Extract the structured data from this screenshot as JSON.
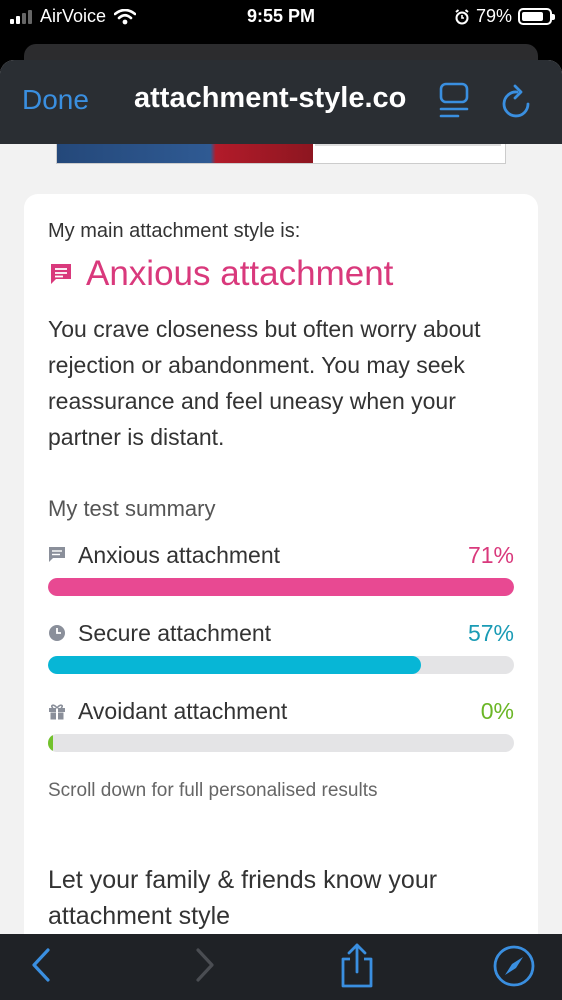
{
  "status_bar": {
    "carrier": "AirVoice",
    "time": "9:55 PM",
    "battery": "79%",
    "battery_level": 0.79
  },
  "browser": {
    "done_label": "Done",
    "url": "attachment-style.co"
  },
  "result": {
    "lead": "My main attachment style is:",
    "style": "Anxious attachment",
    "description": "You crave closeness but often worry about rejection or abandonment. You may seek reassurance and feel uneasy when your partner is distant.",
    "summary_heading": "My test summary",
    "items": [
      {
        "label": "Anxious attachment",
        "percent_text": "71%",
        "percent": 100,
        "color": "#e84992",
        "text_color": "#d9397c",
        "icon": "chat-icon"
      },
      {
        "label": "Secure attachment",
        "percent_text": "57%",
        "percent": 80,
        "color": "#07b6d6",
        "text_color": "#1a9bb5",
        "icon": "clock-icon"
      },
      {
        "label": "Avoidant attachment",
        "percent_text": "0%",
        "percent": 1,
        "color": "#72c22c",
        "text_color": "#6bb626",
        "icon": "gift-icon"
      }
    ],
    "hint": "Scroll down for full personalised results",
    "share_heading": "Let your family & friends know your attachment style"
  },
  "colors": {
    "accent": "#3a8fe0",
    "brand": "#d9397c"
  }
}
